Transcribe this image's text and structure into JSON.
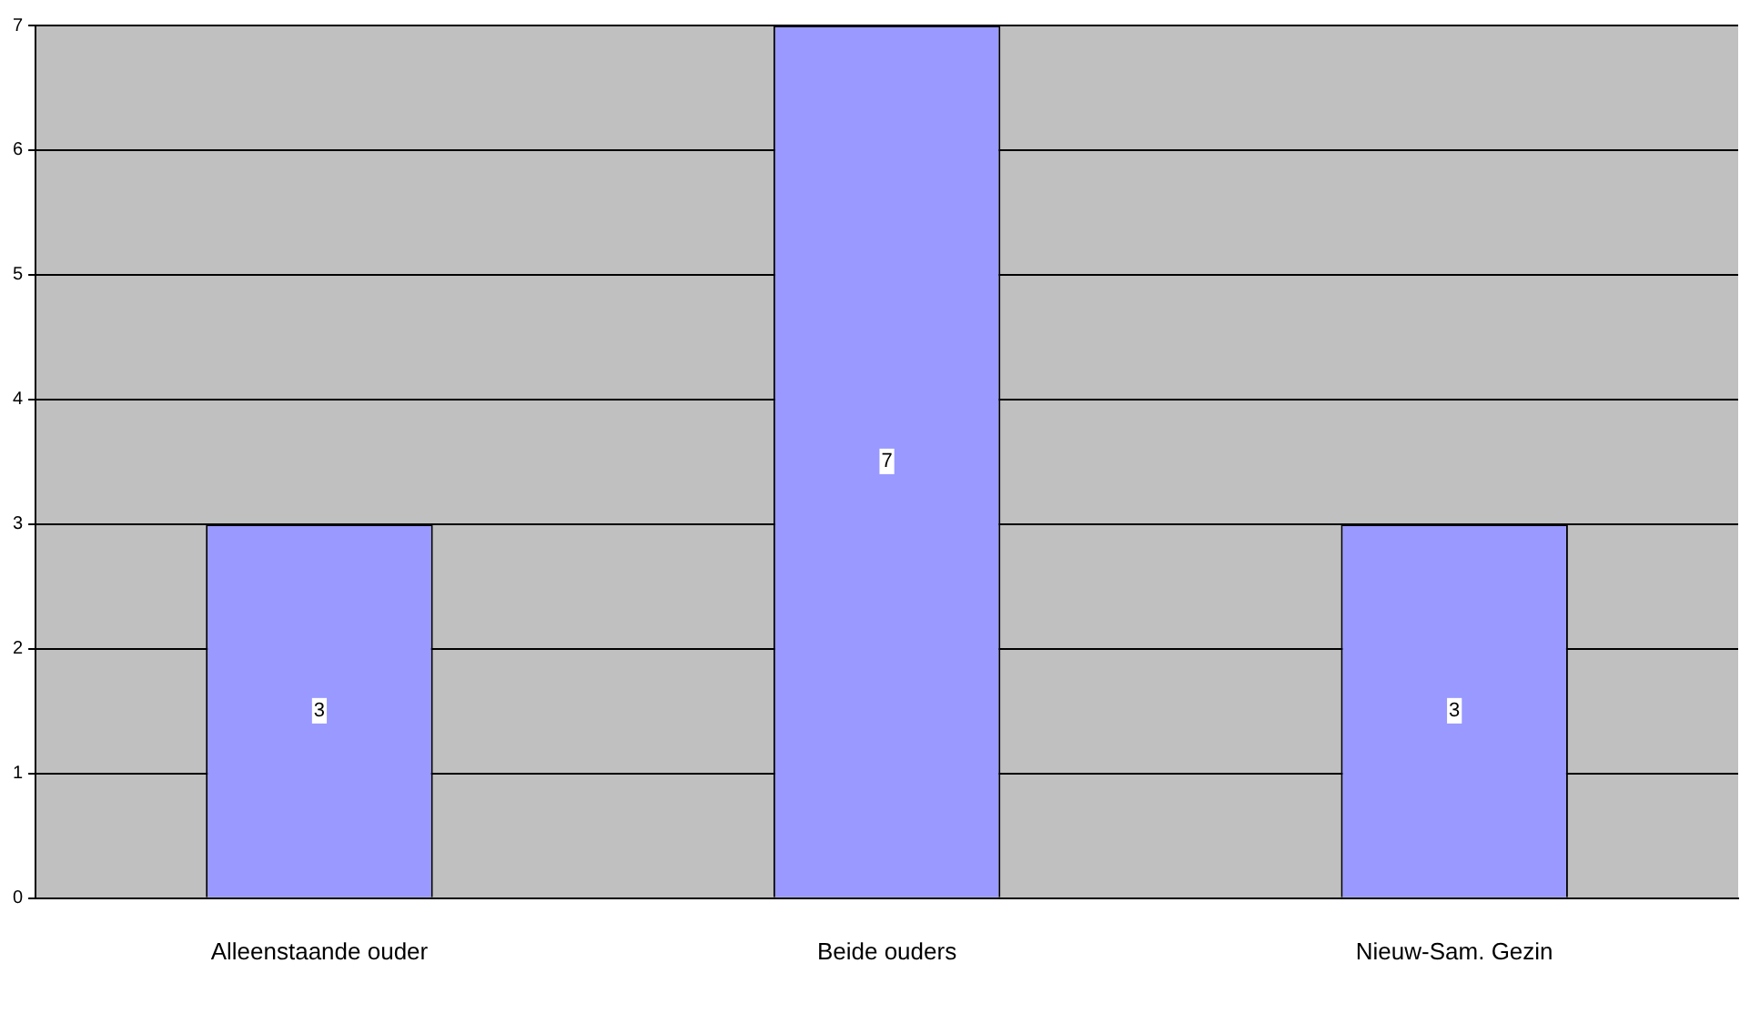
{
  "chart_data": {
    "type": "bar",
    "categories": [
      "Alleenstaande ouder",
      "Beide ouders",
      "Nieuw-Sam. Gezin"
    ],
    "values": [
      3,
      7,
      3
    ],
    "color": "#9999ff",
    "ylim": [
      0,
      7
    ],
    "yticks": [
      0,
      1,
      2,
      3,
      4,
      5,
      6,
      7
    ],
    "grid": "y",
    "data_labels": true,
    "legend": false
  }
}
